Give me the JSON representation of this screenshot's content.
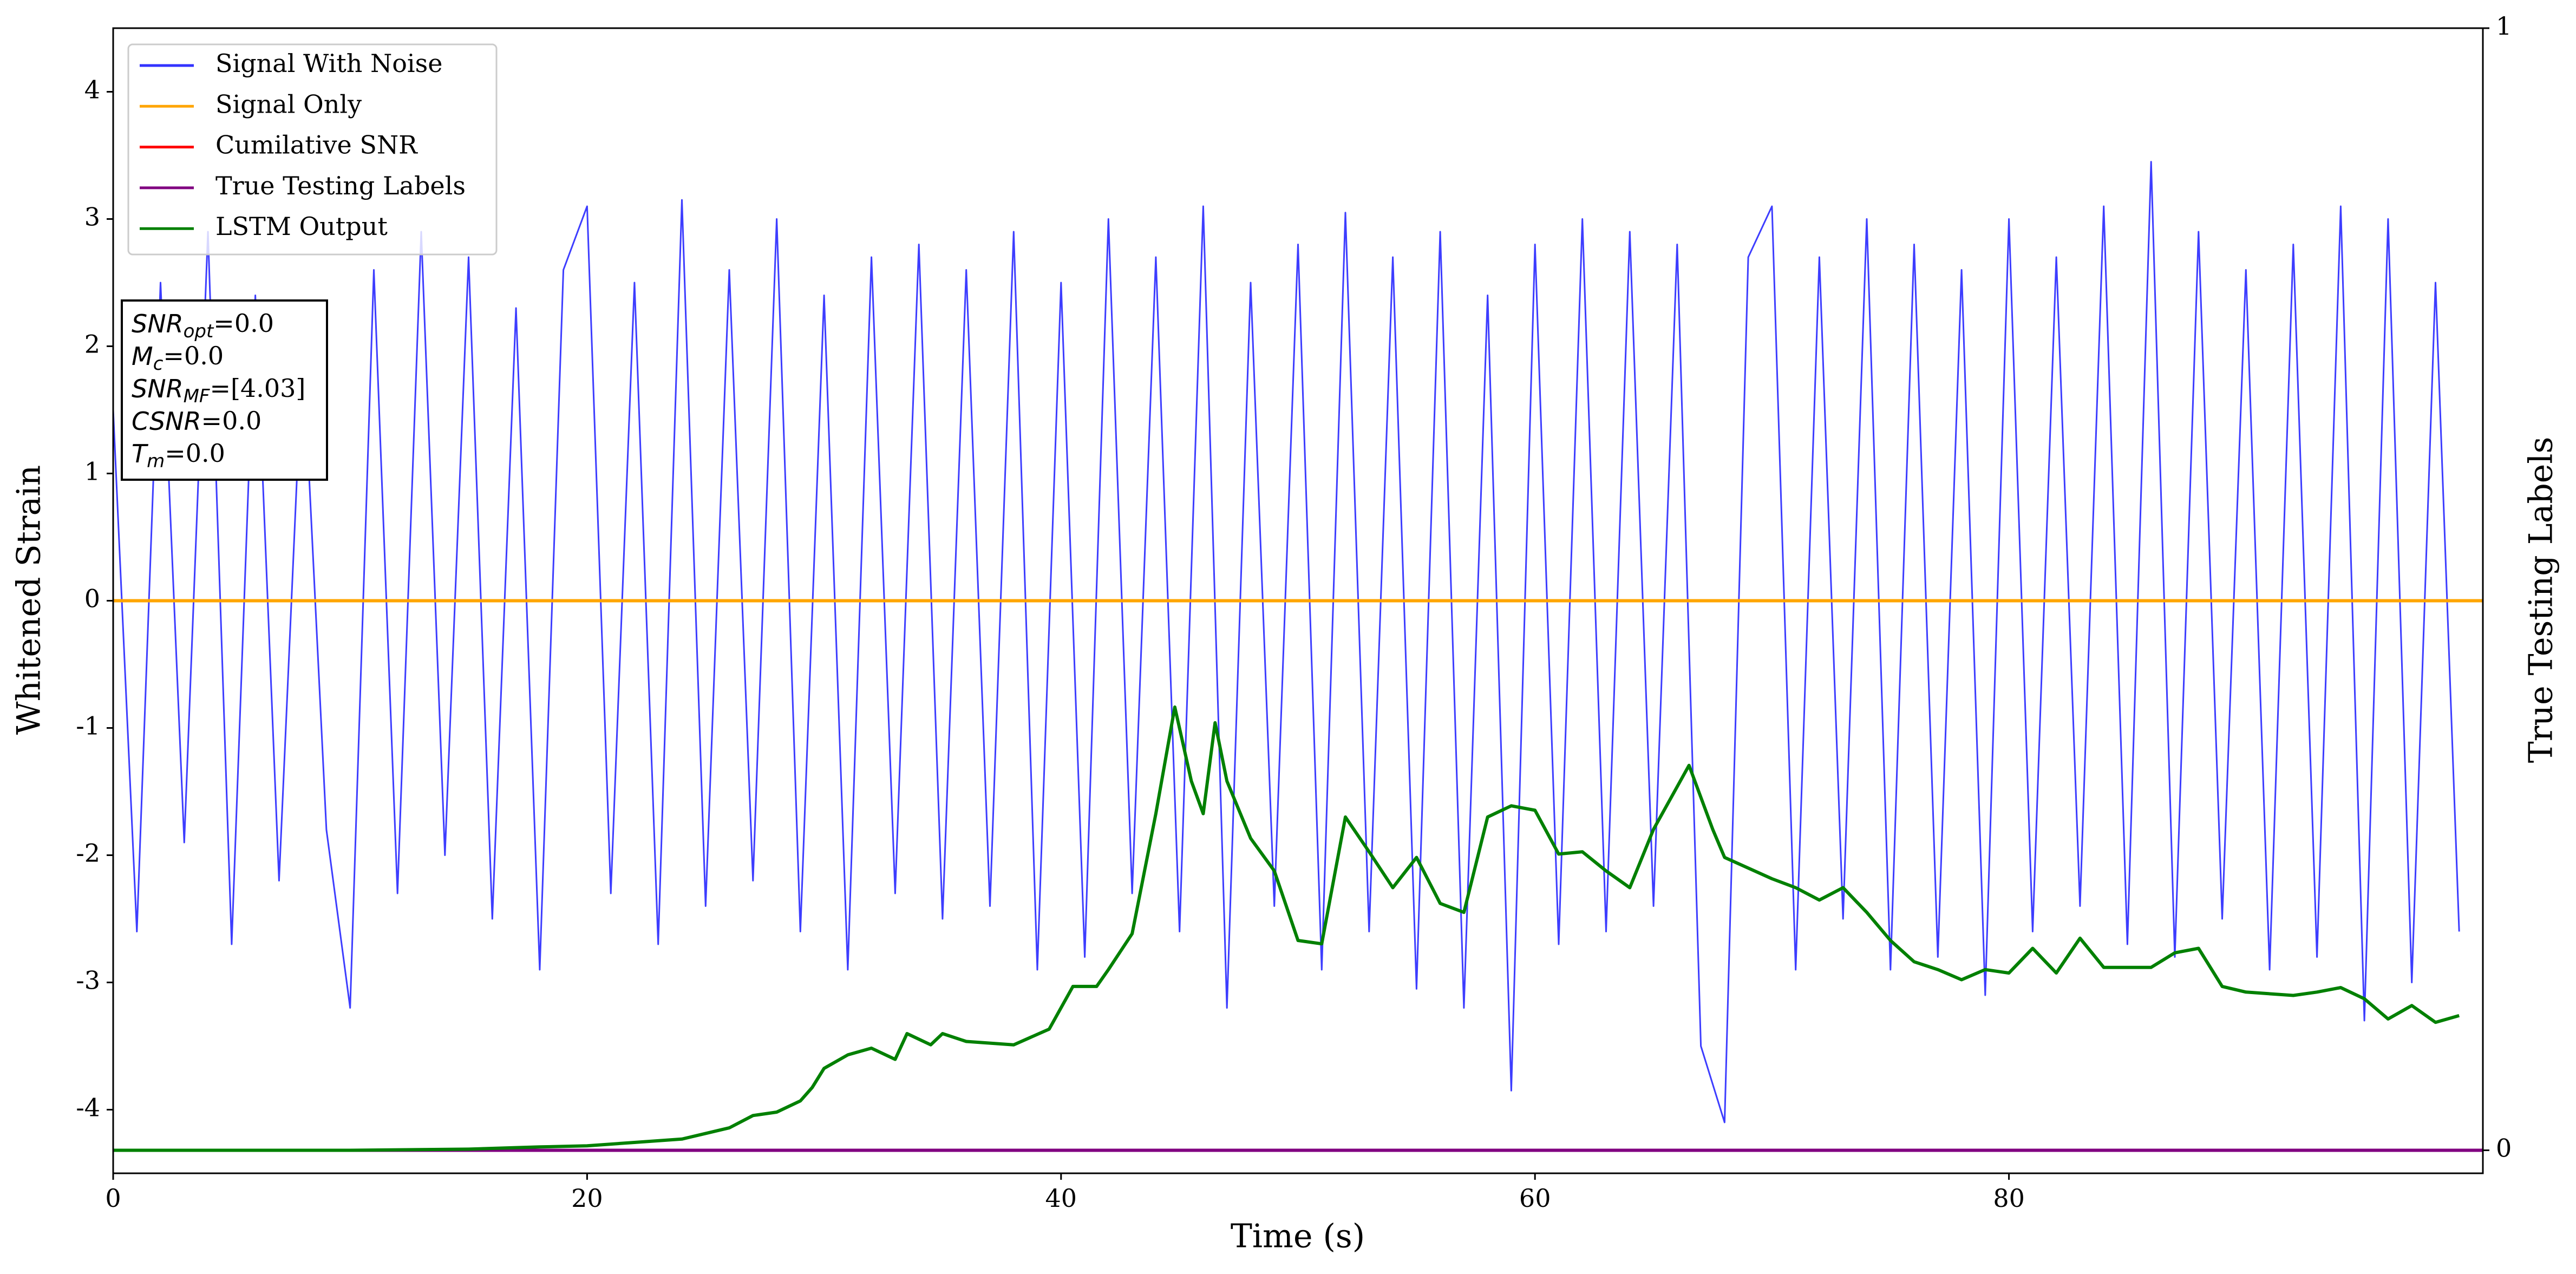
{
  "chart_data": {
    "type": "line",
    "xlabel": "Time (s)",
    "ylabel": "Whitened Strain",
    "y2label": "True Testing Labels",
    "xlim": [
      0,
      100
    ],
    "ylim": [
      -4.5,
      4.5
    ],
    "y2lim": [
      -0.0205,
      1
    ],
    "xticks": [
      0,
      20,
      40,
      60,
      80
    ],
    "yticks": [
      -4,
      -3,
      -2,
      -1,
      0,
      1,
      2,
      3,
      4
    ],
    "y2ticks": [
      0,
      1
    ],
    "legend": "upper left",
    "series": [
      {
        "name": "Signal With Noise",
        "color": "#3333ff",
        "x": [
          0,
          1,
          2,
          3,
          4,
          5,
          6,
          7,
          8,
          9,
          10,
          11,
          12,
          13,
          14,
          15,
          16,
          17,
          18,
          19,
          20,
          21,
          22,
          23,
          24,
          25,
          26,
          27,
          28,
          29,
          30,
          31,
          32,
          33,
          34,
          35,
          36,
          37,
          38,
          39,
          40,
          41,
          42,
          43,
          44,
          45,
          46,
          47,
          48,
          49,
          50,
          51,
          52,
          53,
          54,
          55,
          56,
          57,
          58,
          59,
          60,
          61,
          62,
          63,
          64,
          65,
          66,
          67,
          68,
          69,
          70,
          71,
          72,
          73,
          74,
          75,
          76,
          77,
          78,
          79,
          80,
          81,
          82,
          83,
          84,
          85,
          86,
          87,
          88,
          89,
          90,
          91,
          92,
          93,
          94,
          95,
          96,
          97,
          98,
          99
        ],
        "values": [
          1.5,
          -2.6,
          2.5,
          -1.9,
          2.9,
          -2.7,
          2.4,
          -2.2,
          2.0,
          -1.8,
          -3.2,
          2.6,
          -2.3,
          2.9,
          -2.0,
          2.7,
          -2.5,
          2.3,
          -2.9,
          2.6,
          3.1,
          -2.3,
          2.5,
          -2.7,
          3.15,
          -2.4,
          2.6,
          -2.2,
          3.0,
          -2.6,
          2.4,
          -2.9,
          2.7,
          -2.3,
          2.8,
          -2.5,
          2.6,
          -2.4,
          2.9,
          -2.9,
          2.5,
          -2.8,
          3.0,
          -2.3,
          2.7,
          -2.6,
          3.1,
          -3.2,
          2.5,
          -2.4,
          2.8,
          -2.9,
          3.05,
          -2.6,
          2.7,
          -3.05,
          2.9,
          -3.2,
          2.4,
          -3.85,
          2.8,
          -2.7,
          3.0,
          -2.6,
          2.9,
          -2.4,
          2.8,
          -3.5,
          -4.1,
          2.7,
          3.1,
          -2.9,
          2.7,
          -2.5,
          3.0,
          -2.9,
          2.8,
          -2.8,
          2.6,
          -3.1,
          3.0,
          -2.6,
          2.7,
          -2.4,
          3.1,
          -2.7,
          3.45,
          -2.8,
          2.9,
          -2.5,
          2.6,
          -2.9,
          2.8,
          -2.8,
          3.1,
          -3.3,
          3.0,
          -3.0,
          2.5,
          -2.6
        ]
      },
      {
        "name": "Signal Only",
        "color": "#ffa500",
        "x": [
          0,
          100
        ],
        "values": [
          0,
          0
        ]
      },
      {
        "name": "Cumilative SNR",
        "color": "#ff0000",
        "x": [
          0,
          100
        ],
        "values": [
          0,
          0
        ]
      },
      {
        "name": "True Testing Labels",
        "color": "#800080",
        "axis": "y2",
        "x": [
          0,
          100
        ],
        "values": [
          0,
          0
        ]
      },
      {
        "name": "LSTM Output",
        "color": "#008000",
        "axis": "y2",
        "x": [
          0,
          5,
          10,
          15,
          18,
          20,
          22,
          24,
          25,
          26,
          27,
          28,
          29,
          29.5,
          30,
          31,
          32,
          33,
          33.5,
          34.5,
          35,
          36,
          38,
          39.5,
          40.5,
          41.5,
          42,
          43,
          44,
          44.8,
          45.5,
          46,
          46.5,
          47,
          48,
          49,
          50,
          51,
          52,
          53,
          54,
          55,
          56,
          57,
          58,
          59,
          60,
          61,
          62,
          63,
          64,
          65,
          66.5,
          67.5,
          68,
          70,
          71,
          72,
          73,
          74,
          75,
          76,
          77,
          78,
          79,
          80,
          81,
          82,
          83,
          84,
          85,
          86,
          87,
          88,
          89,
          90,
          92,
          93,
          94,
          95,
          96,
          97,
          98,
          99
        ],
        "values": [
          0,
          0,
          0,
          0.001,
          0.003,
          0.004,
          0.007,
          0.01,
          0.015,
          0.02,
          0.031,
          0.034,
          0.044,
          0.056,
          0.073,
          0.085,
          0.091,
          0.081,
          0.104,
          0.094,
          0.104,
          0.097,
          0.094,
          0.108,
          0.146,
          0.146,
          0.161,
          0.193,
          0.3,
          0.395,
          0.329,
          0.3,
          0.381,
          0.329,
          0.278,
          0.249,
          0.187,
          0.184,
          0.297,
          0.266,
          0.234,
          0.261,
          0.22,
          0.212,
          0.297,
          0.307,
          0.303,
          0.264,
          0.266,
          0.249,
          0.234,
          0.286,
          0.343,
          0.286,
          0.261,
          0.242,
          0.234,
          0.223,
          0.234,
          0.212,
          0.187,
          0.168,
          0.161,
          0.152,
          0.161,
          0.158,
          0.18,
          0.158,
          0.189,
          0.163,
          0.163,
          0.163,
          0.176,
          0.18,
          0.146,
          0.141,
          0.138,
          0.141,
          0.145,
          0.135,
          0.117,
          0.129,
          0.114,
          0.12
        ]
      }
    ],
    "annotation": [
      {
        "name": "SNR",
        "sub": "opt",
        "value": "=0.0"
      },
      {
        "name": "M",
        "sub": "c",
        "value": "=0.0"
      },
      {
        "name": "SNR",
        "sub": "MF",
        "value": "=[4.03]"
      },
      {
        "name": "CSNR",
        "value": "=0.0"
      },
      {
        "name": "T",
        "sub": "m",
        "value": "=0.0"
      }
    ]
  }
}
